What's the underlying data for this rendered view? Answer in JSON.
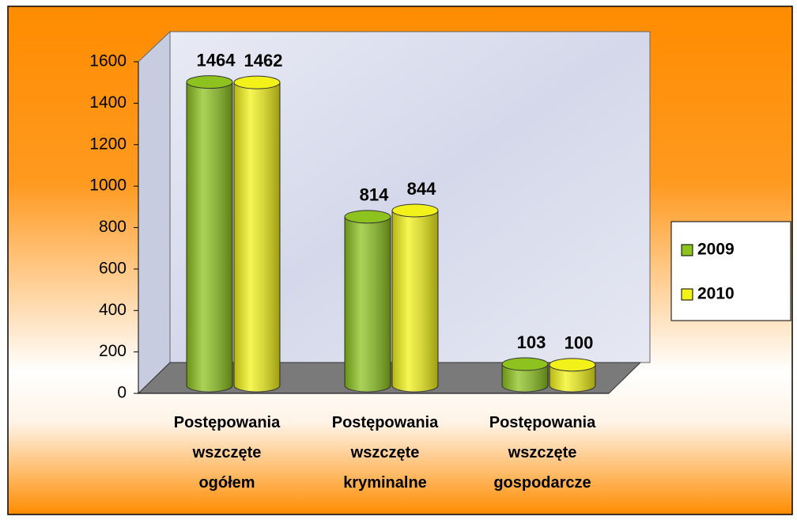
{
  "chart_data": {
    "type": "bar3d",
    "categories": [
      [
        "Postępowania",
        "wszczęte",
        "ogółem"
      ],
      [
        "Postępowania",
        "wszczęte",
        "kryminalne"
      ],
      [
        "Postępowania",
        "wszczęte",
        "gospodarcze"
      ]
    ],
    "series": [
      {
        "name": "2009",
        "color": "#8dc21f",
        "values": [
          1464,
          814,
          103
        ]
      },
      {
        "name": "2010",
        "color": "#f2f21a",
        "values": [
          1462,
          844,
          100
        ]
      }
    ],
    "ylim": [
      0,
      1600
    ],
    "yticks": [
      0,
      200,
      400,
      600,
      800,
      1000,
      1200,
      1400,
      1600
    ],
    "grid": false,
    "legend": "right"
  }
}
